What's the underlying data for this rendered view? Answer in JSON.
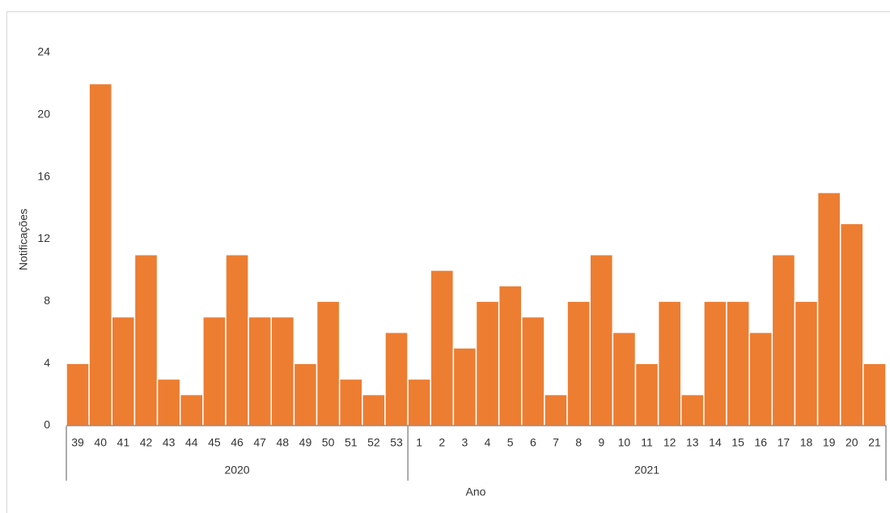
{
  "chart_data": {
    "type": "bar",
    "x_label": "Ano",
    "y_label": "Notificações",
    "color": "#ed7d31",
    "ylim": [
      0,
      24
    ],
    "yticks": [
      0,
      4,
      8,
      12,
      16,
      20,
      24
    ],
    "grid": false,
    "groups": [
      {
        "label": "2020",
        "categories": [
          "39",
          "40",
          "41",
          "42",
          "43",
          "44",
          "45",
          "46",
          "47",
          "48",
          "49",
          "50",
          "51",
          "52",
          "53"
        ],
        "values": [
          4,
          22,
          7,
          11,
          3,
          2,
          7,
          11,
          7,
          7,
          4,
          8,
          3,
          2,
          6
        ]
      },
      {
        "label": "2021",
        "categories": [
          "1",
          "2",
          "3",
          "4",
          "5",
          "6",
          "7",
          "8",
          "9",
          "10",
          "11",
          "12",
          "13",
          "14",
          "15",
          "16",
          "17",
          "18",
          "19",
          "20",
          "21"
        ],
        "values": [
          3,
          10,
          5,
          8,
          9,
          7,
          2,
          8,
          11,
          6,
          4,
          8,
          2,
          8,
          8,
          6,
          11,
          8,
          15,
          13,
          4
        ]
      }
    ]
  }
}
